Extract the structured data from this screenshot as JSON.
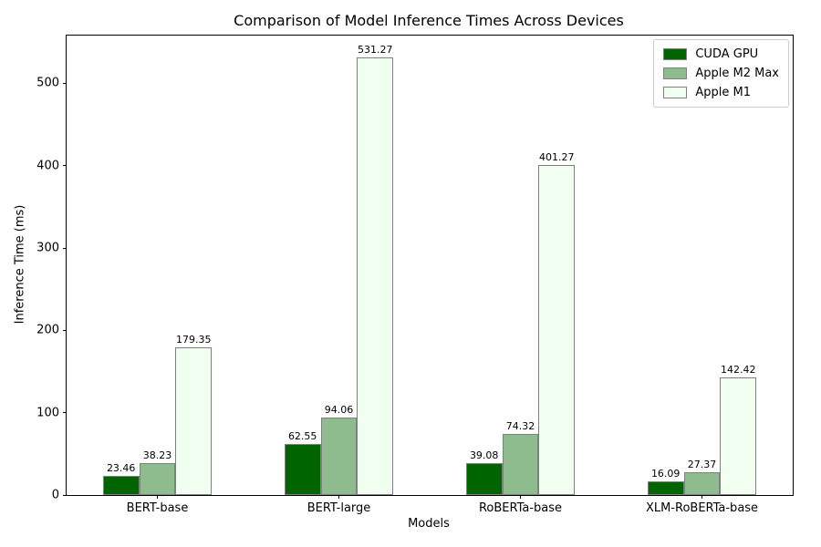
{
  "chart_data": {
    "type": "bar",
    "title": "Comparison of Model Inference Times Across Devices",
    "xlabel": "Models",
    "ylabel": "Inference Time (ms)",
    "categories": [
      "BERT-base",
      "BERT-large",
      "RoBERTa-base",
      "XLM-RoBERTa-base"
    ],
    "series": [
      {
        "name": "CUDA GPU",
        "color": "#006400",
        "values": [
          23.46,
          62.55,
          39.08,
          16.09
        ]
      },
      {
        "name": "Apple M2 Max",
        "color": "#8fbc8f",
        "values": [
          38.23,
          94.06,
          74.32,
          27.37
        ]
      },
      {
        "name": "Apple M1",
        "color": "#f0fff0",
        "values": [
          179.35,
          531.27,
          401.27,
          142.42
        ]
      }
    ],
    "bar_edge_color": "#808080",
    "value_labels": true,
    "value_label_format": "2dp",
    "yticks": [
      0,
      100,
      200,
      300,
      400,
      500
    ],
    "ylim": [
      0,
      558
    ],
    "grid": false,
    "legend_position": "upper right"
  }
}
